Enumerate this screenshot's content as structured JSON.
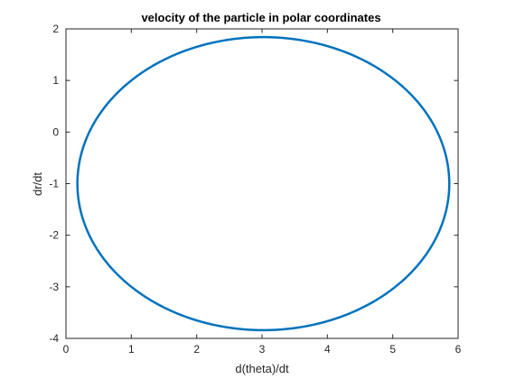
{
  "chart_data": {
    "type": "line",
    "title": "velocity of the particle in polar coordinates",
    "xlabel": "d(theta)/dt",
    "ylabel": "dr/dt",
    "xlim": [
      0,
      6
    ],
    "ylim": [
      -4,
      2
    ],
    "xticks": [
      "0",
      "1",
      "2",
      "3",
      "4",
      "5",
      "6"
    ],
    "yticks": [
      "-4",
      "-3",
      "-2",
      "-1",
      "0",
      "1",
      "2"
    ],
    "grid": false,
    "series": [
      {
        "shape": "closed-ellipse",
        "center": [
          3.02,
          -1.0
        ],
        "x_range": [
          0.18,
          5.87
        ],
        "y_range": [
          -3.85,
          1.83
        ],
        "color": "#0072BD"
      }
    ]
  }
}
